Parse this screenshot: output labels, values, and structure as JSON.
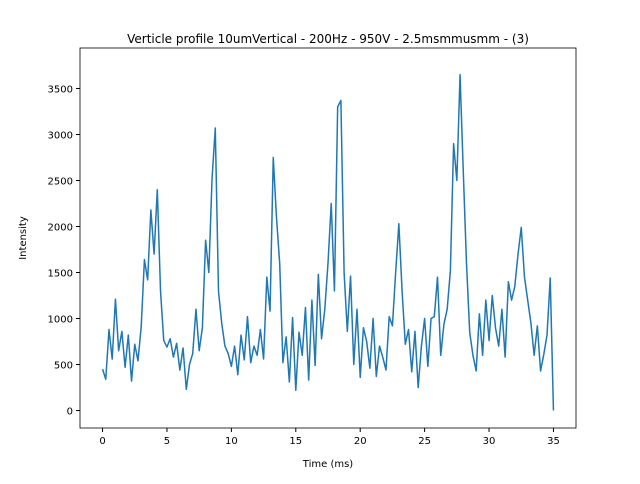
{
  "chart_data": {
    "type": "line",
    "title": "Verticle profile 10umVertical - 200Hz - 950V - 2.5msmmusmm - (3)",
    "x_label": "Time (ms)",
    "y_label": "Intensity",
    "x": [
      0,
      0.25,
      0.5,
      0.75,
      1,
      1.25,
      1.5,
      1.75,
      2,
      2.25,
      2.5,
      2.75,
      3,
      3.25,
      3.5,
      3.75,
      4,
      4.25,
      4.5,
      4.75,
      5,
      5.25,
      5.5,
      5.75,
      6,
      6.25,
      6.5,
      6.75,
      7,
      7.25,
      7.5,
      7.75,
      8,
      8.25,
      8.5,
      8.75,
      9,
      9.25,
      9.5,
      9.75,
      10,
      10.25,
      10.5,
      10.75,
      11,
      11.25,
      11.5,
      11.75,
      12,
      12.25,
      12.5,
      12.75,
      13,
      13.25,
      13.5,
      13.75,
      14,
      14.25,
      14.5,
      14.75,
      15,
      15.25,
      15.5,
      15.75,
      16,
      16.25,
      16.5,
      16.75,
      17,
      17.25,
      17.5,
      17.75,
      18,
      18.25,
      18.5,
      18.75,
      19,
      19.25,
      19.5,
      19.75,
      20,
      20.25,
      20.5,
      20.75,
      21,
      21.25,
      21.5,
      21.75,
      22,
      22.25,
      22.5,
      22.75,
      23,
      23.25,
      23.5,
      23.75,
      24,
      24.25,
      24.5,
      24.75,
      25,
      25.25,
      25.5,
      25.75,
      26,
      26.25,
      26.5,
      26.75,
      27,
      27.25,
      27.5,
      27.75,
      28,
      28.25,
      28.5,
      28.75,
      29,
      29.25,
      29.5,
      29.75,
      30,
      30.25,
      30.5,
      30.75,
      31,
      31.25,
      31.5,
      31.75,
      32,
      32.25,
      32.5,
      32.75,
      33,
      33.25,
      33.5,
      33.75,
      34,
      34.25,
      34.5,
      34.75,
      35
    ],
    "series": [
      {
        "color": "#1f77b4",
        "values": [
          450,
          340,
          880,
          560,
          1210,
          650,
          860,
          470,
          820,
          320,
          720,
          540,
          910,
          1640,
          1420,
          2180,
          1700,
          2400,
          1300,
          760,
          690,
          780,
          580,
          730,
          440,
          680,
          230,
          500,
          620,
          1100,
          650,
          900,
          1850,
          1500,
          2520,
          3070,
          1300,
          950,
          700,
          620,
          480,
          700,
          390,
          820,
          550,
          1020,
          520,
          700,
          600,
          880,
          560,
          1450,
          1080,
          2750,
          2100,
          1600,
          520,
          800,
          310,
          1010,
          220,
          850,
          600,
          1120,
          330,
          1200,
          490,
          1480,
          780,
          1100,
          1600,
          2250,
          1300,
          3300,
          3370,
          1500,
          860,
          1460,
          500,
          1100,
          360,
          900,
          750,
          460,
          1000,
          370,
          700,
          580,
          440,
          1020,
          920,
          1500,
          2030,
          1300,
          720,
          880,
          420,
          860,
          250,
          700,
          1000,
          480,
          1000,
          1020,
          1450,
          600,
          940,
          1100,
          1520,
          2900,
          2500,
          3650,
          2600,
          1600,
          850,
          600,
          430,
          1050,
          600,
          1200,
          760,
          1250,
          900,
          700,
          1100,
          580,
          1400,
          1200,
          1350,
          1700,
          1990,
          1450,
          1200,
          950,
          600,
          920,
          430,
          610,
          820,
          1440,
          0
        ]
      }
    ],
    "xlim": [
      -1.75,
      36.75
    ],
    "ylim": [
      -190,
      3940
    ],
    "xticks": [
      0,
      5,
      10,
      15,
      20,
      25,
      30,
      35
    ],
    "yticks": [
      0,
      500,
      1000,
      1500,
      2000,
      2500,
      3000,
      3500
    ]
  }
}
